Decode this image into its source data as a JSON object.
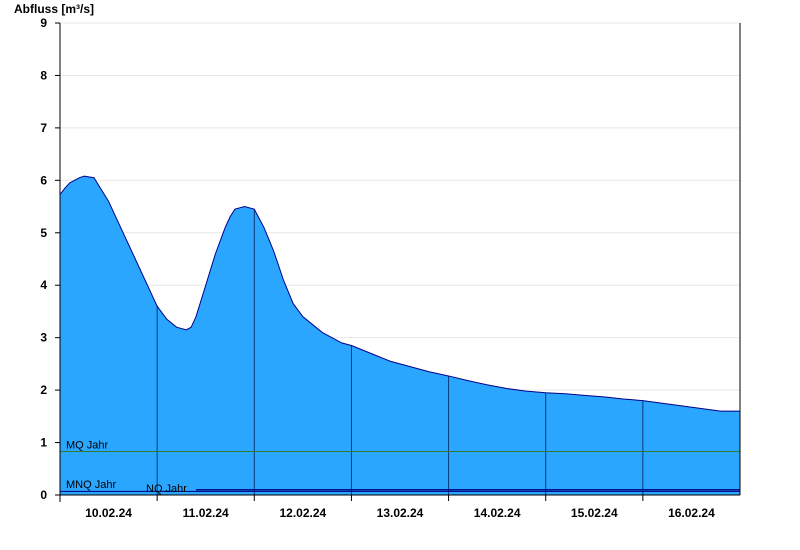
{
  "chart_data": {
    "type": "area",
    "title": "",
    "ylabel": "Abfluss [m³/s]",
    "xlabel": "",
    "ylim": [
      0,
      9
    ],
    "xlim": [
      0,
      7
    ],
    "y_ticks": [
      "0",
      "1",
      "2",
      "3",
      "4",
      "5",
      "6",
      "7",
      "8",
      "9"
    ],
    "x_ticks": [
      {
        "x": 0.5,
        "label": "10.02.24"
      },
      {
        "x": 1.5,
        "label": "11.02.24"
      },
      {
        "x": 2.5,
        "label": "12.02.24"
      },
      {
        "x": 3.5,
        "label": "13.02.24"
      },
      {
        "x": 4.5,
        "label": "14.02.24"
      },
      {
        "x": 5.5,
        "label": "15.02.24"
      },
      {
        "x": 6.5,
        "label": "16.02.24"
      }
    ],
    "day_boundaries": [
      1,
      2,
      3,
      4,
      5,
      6
    ],
    "grid": true,
    "colors": {
      "area_fill": "#2ba6fe",
      "area_line": "#00008b",
      "mq_line": "#2e7d32",
      "nq_line": "#000080",
      "grid": "#e8e8e8"
    },
    "series": [
      {
        "x": [
          0.0,
          0.05,
          0.1,
          0.2,
          0.25,
          0.35,
          0.4,
          0.5,
          0.6,
          0.7,
          0.8,
          0.9,
          1.0,
          1.1,
          1.2,
          1.3,
          1.35,
          1.4,
          1.5,
          1.6,
          1.7,
          1.75,
          1.8,
          1.9,
          2.0,
          2.1,
          2.2,
          2.3,
          2.4,
          2.5,
          2.6,
          2.7,
          2.8,
          2.9,
          3.0,
          3.2,
          3.4,
          3.6,
          3.8,
          4.0,
          4.2,
          4.4,
          4.6,
          4.8,
          5.0,
          5.2,
          5.4,
          5.6,
          5.8,
          6.0,
          6.2,
          6.4,
          6.6,
          6.8,
          7.0
        ],
        "y": [
          5.73,
          5.85,
          5.95,
          6.05,
          6.08,
          6.05,
          5.9,
          5.6,
          5.2,
          4.8,
          4.4,
          4.0,
          3.6,
          3.35,
          3.2,
          3.15,
          3.2,
          3.4,
          4.0,
          4.6,
          5.1,
          5.3,
          5.45,
          5.5,
          5.45,
          5.1,
          4.65,
          4.1,
          3.65,
          3.4,
          3.25,
          3.1,
          3.0,
          2.9,
          2.85,
          2.7,
          2.55,
          2.45,
          2.35,
          2.27,
          2.18,
          2.1,
          2.03,
          1.98,
          1.95,
          1.93,
          1.9,
          1.87,
          1.83,
          1.8,
          1.75,
          1.7,
          1.65,
          1.6,
          1.6
        ]
      }
    ],
    "reference_lines": [
      {
        "name": "MQ Jahr",
        "value": 0.83
      },
      {
        "name": "MNQ Jahr",
        "value": 0.05
      },
      {
        "name": "NQ Jahr",
        "value": 0.08
      }
    ]
  }
}
